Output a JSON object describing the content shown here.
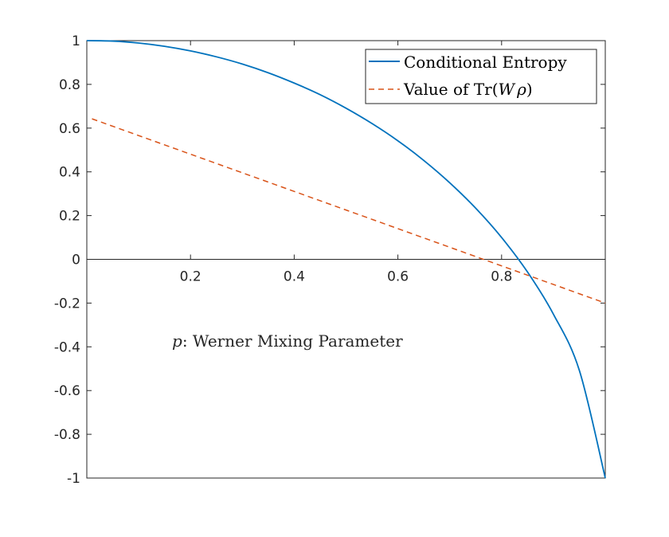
{
  "chart_data": {
    "type": "line",
    "xlim": [
      0,
      1
    ],
    "ylim": [
      -1,
      1
    ],
    "x_ticks": [
      0.2,
      0.4,
      0.6,
      0.8
    ],
    "x_tick_labels": [
      "0.2",
      "0.4",
      "0.6",
      "0.8"
    ],
    "y_ticks": [
      -1,
      -0.8,
      -0.6,
      -0.4,
      -0.2,
      0,
      0.2,
      0.4,
      0.6,
      0.8,
      1
    ],
    "y_tick_labels": [
      "-1",
      "-0.8",
      "-0.6",
      "-0.4",
      "-0.2",
      "0",
      "0.2",
      "0.4",
      "0.6",
      "0.8",
      "1"
    ],
    "grid": false,
    "legend_position": "top-right",
    "annotation": {
      "var": "p",
      "text": ": Werner Mixing Parameter"
    },
    "series": [
      {
        "name": "Conditional Entropy",
        "color": "#0072BD",
        "style": "solid",
        "x": [
          0,
          0.05,
          0.1,
          0.15,
          0.2,
          0.25,
          0.3,
          0.35,
          0.4,
          0.45,
          0.5,
          0.55,
          0.6,
          0.65,
          0.7,
          0.75,
          0.8,
          0.85,
          0.9,
          0.95,
          1.0
        ],
        "y": [
          1.0,
          0.998,
          0.989,
          0.974,
          0.953,
          0.926,
          0.893,
          0.853,
          0.806,
          0.753,
          0.691,
          0.621,
          0.542,
          0.452,
          0.35,
          0.234,
          0.1,
          -0.058,
          -0.251,
          -0.508,
          -1.0
        ]
      },
      {
        "name": "Value of Tr(Wρ)",
        "legend_label": {
          "prefix": "Value of ",
          "tr": "Tr",
          "open": "(",
          "w": "W",
          "rho": "ρ",
          "close": ")"
        },
        "color": "#D95319",
        "style": "dashed",
        "x": [
          0.01,
          1.0
        ],
        "y": [
          0.6425,
          -0.2
        ],
        "y_at_x0": 0.65,
        "slope": -0.85
      }
    ]
  }
}
